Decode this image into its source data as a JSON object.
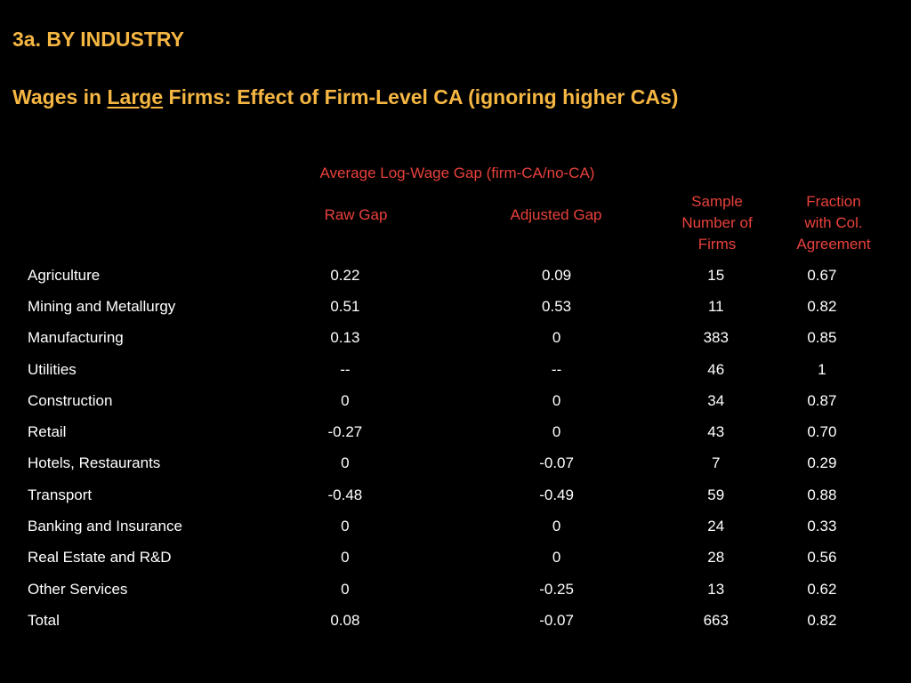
{
  "slide": {
    "heading": "3a. BY INDUSTRY",
    "title_pre": "Wages in ",
    "title_emph": "Large",
    "title_post": " Firms: Effect of Firm-Level CA (ignoring higher CAs)"
  },
  "table": {
    "group_header": "Average Log-Wage Gap (firm-CA/no-CA)",
    "headers": {
      "raw_gap": "Raw Gap",
      "adjusted_gap": "Adjusted Gap",
      "sample_number": [
        "Sample",
        "Number of",
        "Firms"
      ],
      "fraction": [
        "Fraction",
        "with Col.",
        "Agreement"
      ]
    },
    "rows": [
      {
        "industry": "Agriculture",
        "raw_gap": "0.22",
        "adjusted_gap": "0.09",
        "firms": "15",
        "fraction": "0.67"
      },
      {
        "industry": "Mining and Metallurgy",
        "raw_gap": "0.51",
        "adjusted_gap": "0.53",
        "firms": "11",
        "fraction": "0.82"
      },
      {
        "industry": "Manufacturing",
        "raw_gap": "0.13",
        "adjusted_gap": "0",
        "firms": "383",
        "fraction": "0.85"
      },
      {
        "industry": "Utilities",
        "raw_gap": "--",
        "adjusted_gap": "--",
        "firms": "46",
        "fraction": "1"
      },
      {
        "industry": "Construction",
        "raw_gap": "0",
        "adjusted_gap": "0",
        "firms": "34",
        "fraction": "0.87"
      },
      {
        "industry": "Retail",
        "raw_gap": "-0.27",
        "adjusted_gap": "0",
        "firms": "43",
        "fraction": "0.70"
      },
      {
        "industry": "Hotels, Restaurants",
        "raw_gap": "0",
        "adjusted_gap": "-0.07",
        "firms": "7",
        "fraction": "0.29"
      },
      {
        "industry": "Transport",
        "raw_gap": "-0.48",
        "adjusted_gap": "-0.49",
        "firms": "59",
        "fraction": "0.88"
      },
      {
        "industry": "Banking and Insurance",
        "raw_gap": "0",
        "adjusted_gap": "0",
        "firms": "24",
        "fraction": "0.33"
      },
      {
        "industry": "Real Estate and R&D",
        "raw_gap": "0",
        "adjusted_gap": "0",
        "firms": "28",
        "fraction": "0.56"
      },
      {
        "industry": "Other Services",
        "raw_gap": "0",
        "adjusted_gap": "-0.25",
        "firms": "13",
        "fraction": "0.62"
      },
      {
        "industry": "Total",
        "raw_gap": "0.08",
        "adjusted_gap": "-0.07",
        "firms": "663",
        "fraction": "0.82"
      }
    ]
  },
  "colors": {
    "background": "#000000",
    "heading": "#F5B642",
    "table_header": "#E8413C",
    "table_text": "#FFFFFF"
  }
}
